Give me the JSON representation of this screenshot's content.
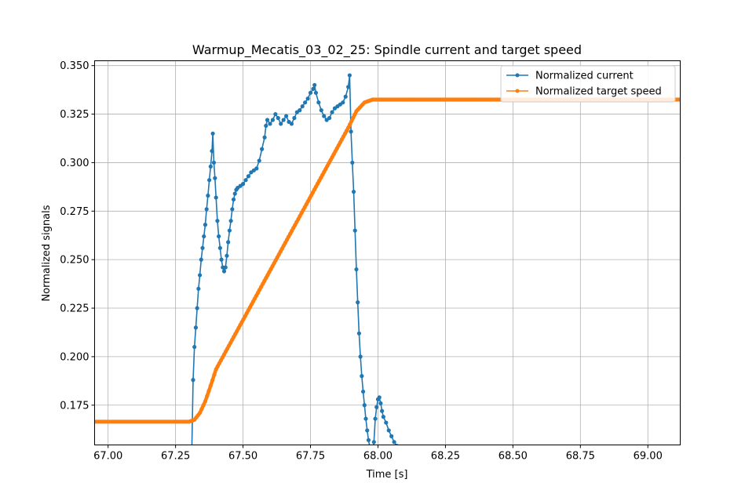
{
  "chart_data": {
    "type": "line",
    "title": "Warmup_Mecatis_03_02_25: Spindle current and target speed",
    "xlabel": "Time [s]",
    "ylabel": "Normalized signals",
    "xlim": [
      66.95,
      69.12
    ],
    "ylim": [
      0.1545,
      0.3525
    ],
    "grid": true,
    "legend_position": "top-right",
    "xticks": [
      "67.00",
      "67.25",
      "67.50",
      "67.75",
      "68.00",
      "68.25",
      "68.50",
      "68.75",
      "69.00"
    ],
    "xtick_values": [
      67.0,
      67.25,
      67.5,
      67.75,
      68.0,
      68.25,
      68.5,
      68.75,
      69.0
    ],
    "yticks": [
      "0.175",
      "0.200",
      "0.225",
      "0.250",
      "0.275",
      "0.300",
      "0.325",
      "0.350"
    ],
    "ytick_values": [
      0.175,
      0.2,
      0.225,
      0.25,
      0.275,
      0.3,
      0.325,
      0.35
    ],
    "series": [
      {
        "name": "Normalized current",
        "color": "#1f77b4",
        "marker": "dot",
        "points": [
          [
            67.31,
            0.15
          ],
          [
            67.315,
            0.188
          ],
          [
            67.32,
            0.205
          ],
          [
            67.325,
            0.215
          ],
          [
            67.33,
            0.225
          ],
          [
            67.335,
            0.235
          ],
          [
            67.34,
            0.242
          ],
          [
            67.345,
            0.25
          ],
          [
            67.35,
            0.256
          ],
          [
            67.355,
            0.262
          ],
          [
            67.36,
            0.268
          ],
          [
            67.365,
            0.276
          ],
          [
            67.37,
            0.283
          ],
          [
            67.375,
            0.291
          ],
          [
            67.38,
            0.298
          ],
          [
            67.385,
            0.306
          ],
          [
            67.388,
            0.315
          ],
          [
            67.392,
            0.3
          ],
          [
            67.396,
            0.292
          ],
          [
            67.4,
            0.282
          ],
          [
            67.405,
            0.27
          ],
          [
            67.41,
            0.262
          ],
          [
            67.415,
            0.256
          ],
          [
            67.42,
            0.25
          ],
          [
            67.425,
            0.246
          ],
          [
            67.43,
            0.244
          ],
          [
            67.435,
            0.246
          ],
          [
            67.44,
            0.252
          ],
          [
            67.445,
            0.259
          ],
          [
            67.45,
            0.265
          ],
          [
            67.455,
            0.27
          ],
          [
            67.46,
            0.276
          ],
          [
            67.465,
            0.281
          ],
          [
            67.47,
            0.284
          ],
          [
            67.475,
            0.286
          ],
          [
            67.48,
            0.287
          ],
          [
            67.49,
            0.288
          ],
          [
            67.5,
            0.289
          ],
          [
            67.51,
            0.291
          ],
          [
            67.52,
            0.293
          ],
          [
            67.53,
            0.295
          ],
          [
            67.54,
            0.296
          ],
          [
            67.55,
            0.297
          ],
          [
            67.56,
            0.301
          ],
          [
            67.57,
            0.307
          ],
          [
            67.58,
            0.313
          ],
          [
            67.585,
            0.319
          ],
          [
            67.59,
            0.322
          ],
          [
            67.6,
            0.32
          ],
          [
            67.61,
            0.322
          ],
          [
            67.62,
            0.325
          ],
          [
            67.63,
            0.323
          ],
          [
            67.64,
            0.32
          ],
          [
            67.65,
            0.322
          ],
          [
            67.66,
            0.324
          ],
          [
            67.67,
            0.321
          ],
          [
            67.68,
            0.32
          ],
          [
            67.69,
            0.323
          ],
          [
            67.7,
            0.326
          ],
          [
            67.71,
            0.327
          ],
          [
            67.72,
            0.329
          ],
          [
            67.73,
            0.331
          ],
          [
            67.74,
            0.333
          ],
          [
            67.75,
            0.336
          ],
          [
            67.76,
            0.338
          ],
          [
            67.765,
            0.34
          ],
          [
            67.77,
            0.336
          ],
          [
            67.78,
            0.331
          ],
          [
            67.79,
            0.327
          ],
          [
            67.8,
            0.324
          ],
          [
            67.81,
            0.322
          ],
          [
            67.82,
            0.323
          ],
          [
            67.83,
            0.326
          ],
          [
            67.84,
            0.328
          ],
          [
            67.85,
            0.329
          ],
          [
            67.86,
            0.33
          ],
          [
            67.87,
            0.331
          ],
          [
            67.88,
            0.334
          ],
          [
            67.89,
            0.339
          ],
          [
            67.895,
            0.345
          ],
          [
            67.9,
            0.316
          ],
          [
            67.905,
            0.3
          ],
          [
            67.91,
            0.285
          ],
          [
            67.915,
            0.265
          ],
          [
            67.92,
            0.245
          ],
          [
            67.925,
            0.228
          ],
          [
            67.93,
            0.212
          ],
          [
            67.935,
            0.2
          ],
          [
            67.94,
            0.19
          ],
          [
            67.945,
            0.182
          ],
          [
            67.95,
            0.175
          ],
          [
            67.955,
            0.168
          ],
          [
            67.96,
            0.162
          ],
          [
            67.965,
            0.157
          ],
          [
            67.97,
            0.153
          ],
          [
            67.975,
            0.15
          ],
          [
            67.98,
            0.15
          ],
          [
            67.985,
            0.156
          ],
          [
            67.99,
            0.168
          ],
          [
            67.995,
            0.174
          ],
          [
            68.0,
            0.178
          ],
          [
            68.005,
            0.179
          ],
          [
            68.01,
            0.176
          ],
          [
            68.015,
            0.172
          ],
          [
            68.02,
            0.169
          ],
          [
            68.03,
            0.166
          ],
          [
            68.04,
            0.162
          ],
          [
            68.05,
            0.159
          ],
          [
            68.06,
            0.156
          ],
          [
            68.07,
            0.154
          ],
          [
            68.075,
            0.15
          ]
        ]
      },
      {
        "name": "Normalized target speed",
        "color": "#ff7f0e",
        "marker": "dot",
        "points": [
          [
            66.95,
            0.1665
          ],
          [
            67.3,
            0.1665
          ],
          [
            67.32,
            0.1675
          ],
          [
            67.34,
            0.171
          ],
          [
            67.36,
            0.177
          ],
          [
            67.38,
            0.185
          ],
          [
            67.4,
            0.1935
          ],
          [
            67.89,
            0.318
          ],
          [
            67.92,
            0.3265
          ],
          [
            67.95,
            0.331
          ],
          [
            67.98,
            0.3325
          ],
          [
            68.0,
            0.3325
          ],
          [
            69.12,
            0.3325
          ]
        ]
      }
    ]
  }
}
